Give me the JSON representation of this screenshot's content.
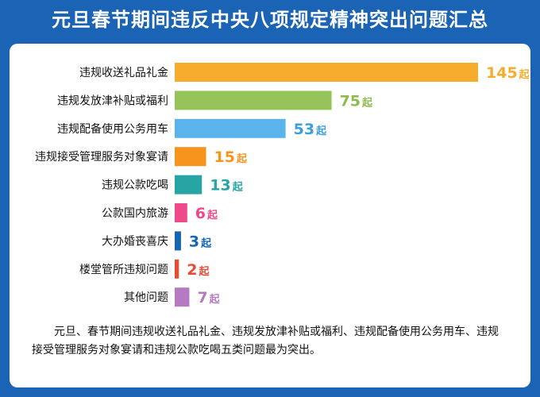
{
  "title": "元旦春节期间违反中央八项规定精神突出问题汇总",
  "note": "元旦、春节期间违规收送礼品礼金、违规发放津补贴或福利、违规配备使用公务用车、违规接受管理服务对象宴请和违规公款吃喝五类问题最为突出。",
  "chart_data": {
    "type": "bar",
    "orientation": "horizontal",
    "categories": [
      "违规收送礼品礼金",
      "违规发放津补贴或福利",
      "违规配备使用公务用车",
      "违规接受管理服务对象宴请",
      "违规公款吃喝",
      "公款国内旅游",
      "大办婚丧喜庆",
      "楼堂管所违规问题",
      "其他问题"
    ],
    "values": [
      145,
      75,
      53,
      15,
      13,
      6,
      3,
      2,
      7
    ],
    "unit": "起",
    "colors": [
      "#f6ad2e",
      "#97c45a",
      "#5bb3ec",
      "#f7941d",
      "#27a4a4",
      "#ee4a8a",
      "#1565b0",
      "#e84a32",
      "#b67ac2"
    ],
    "value_colors": [
      "#f6ad2e",
      "#8dbb4d",
      "#3a9fe0",
      "#f7941d",
      "#27a4a4",
      "#ee4a8a",
      "#1565b0",
      "#e84a32",
      "#b67ac2"
    ],
    "grid": false,
    "legend": "none"
  }
}
